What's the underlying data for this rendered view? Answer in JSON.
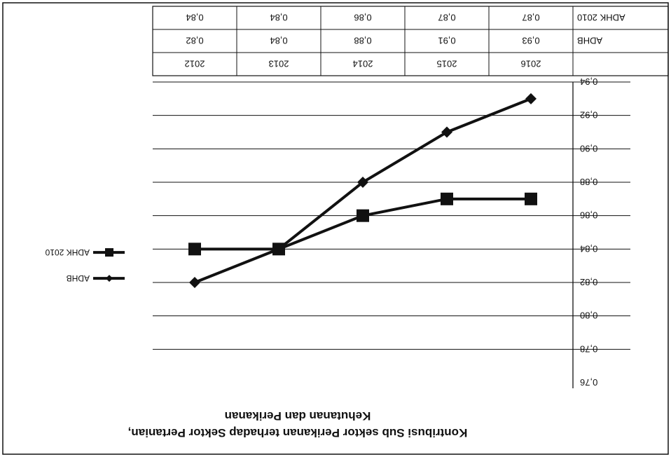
{
  "chart_data": {
    "type": "line",
    "title_line1": "Kontribusi Sub sektor Perikanan terhadap Sektor Pertanian,",
    "title_line2": "Kehutanan dan Perikanan",
    "categories": [
      "2012",
      "2013",
      "2014",
      "2015",
      "2016"
    ],
    "yticks": [
      "0,76",
      "0,78",
      "0,80",
      "0,82",
      "0,84",
      "0,86",
      "0,88",
      "0,90",
      "0,92",
      "0,94"
    ],
    "ylim": [
      0.76,
      0.94
    ],
    "grid": true,
    "legend_position": "right",
    "series": [
      {
        "name": "ADHB",
        "marker": "diamond",
        "values": [
          0.82,
          0.84,
          0.88,
          0.91,
          0.93
        ],
        "labels": [
          "0,82",
          "0,84",
          "0,88",
          "0,91",
          "0,93"
        ]
      },
      {
        "name": "ADHK 2010",
        "marker": "square",
        "values": [
          0.84,
          0.84,
          0.86,
          0.87,
          0.87
        ],
        "labels": [
          "0,84",
          "0,84",
          "0,86",
          "0,87",
          "0,87"
        ]
      }
    ]
  },
  "colors": {
    "line": "#111111",
    "grid": "#111111",
    "background": "#ffffff"
  }
}
